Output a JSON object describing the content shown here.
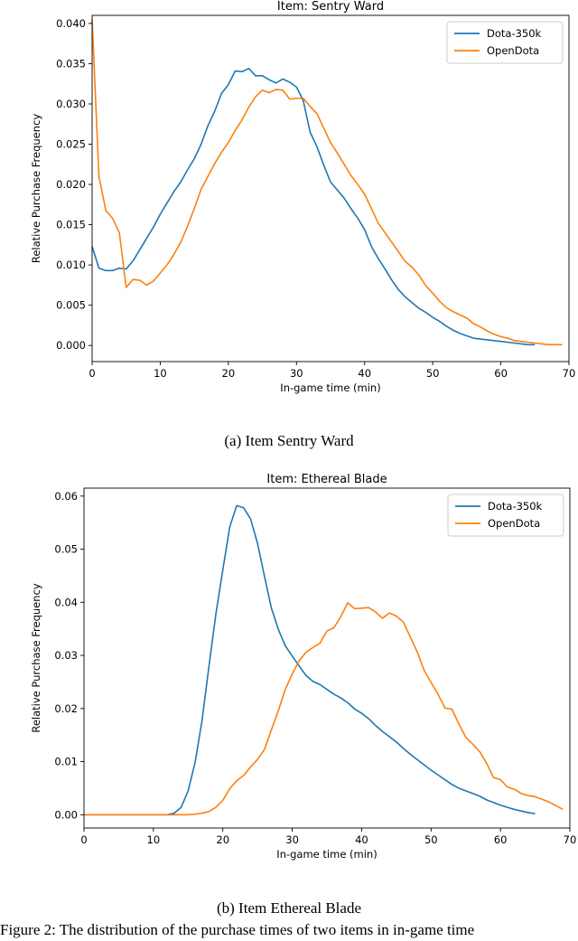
{
  "charts": [
    {
      "type": "line",
      "title": "Item: Sentry Ward",
      "xlabel": "In-game time (min)",
      "ylabel": "Relative Purchase Frequency",
      "xlim": [
        0,
        70
      ],
      "ylim": [
        -0.002,
        0.041
      ],
      "xticks": [
        0,
        10,
        20,
        30,
        40,
        50,
        60,
        70
      ],
      "yticks": [
        0.0,
        0.005,
        0.01,
        0.015,
        0.02,
        0.025,
        0.03,
        0.035,
        0.04
      ],
      "ytick_labels": [
        "0.000",
        "0.005",
        "0.010",
        "0.015",
        "0.020",
        "0.025",
        "0.030",
        "0.035",
        "0.040"
      ],
      "xtick_labels": [
        "0",
        "10",
        "20",
        "30",
        "40",
        "50",
        "60",
        "70"
      ],
      "legend": "top-right",
      "series": [
        {
          "name": "Dota-350k",
          "color": "#1f77b4",
          "x": [
            0,
            1,
            2,
            3,
            4,
            5,
            6,
            7,
            8,
            9,
            10,
            11,
            12,
            13,
            14,
            15,
            16,
            17,
            18,
            19,
            20,
            21,
            22,
            23,
            24,
            25,
            26,
            27,
            28,
            29,
            30,
            31,
            32,
            33,
            34,
            35,
            36,
            37,
            38,
            39,
            40,
            41,
            42,
            43,
            44,
            45,
            46,
            47,
            48,
            49,
            50,
            51,
            52,
            53,
            54,
            55,
            56,
            57,
            58,
            59,
            60,
            61,
            62,
            63,
            64,
            65
          ],
          "values": [
            0.0123,
            0.0096,
            0.0093,
            0.0093,
            0.0096,
            0.0095,
            0.0105,
            0.0119,
            0.0133,
            0.0147,
            0.0163,
            0.0177,
            0.0191,
            0.0203,
            0.0218,
            0.0232,
            0.025,
            0.0273,
            0.0291,
            0.0313,
            0.0324,
            0.0341,
            0.034,
            0.0344,
            0.0335,
            0.0335,
            0.033,
            0.0326,
            0.0331,
            0.0327,
            0.0321,
            0.0304,
            0.0265,
            0.0247,
            0.0224,
            0.0203,
            0.0193,
            0.0183,
            0.017,
            0.0158,
            0.0144,
            0.0123,
            0.0108,
            0.0095,
            0.0081,
            0.0069,
            0.006,
            0.0053,
            0.0046,
            0.0041,
            0.0035,
            0.003,
            0.0024,
            0.0019,
            0.0015,
            0.0012,
            0.0009,
            0.0008,
            0.0007,
            0.0006,
            0.0005,
            0.0004,
            0.0003,
            0.0002,
            0.0001,
            0.0001
          ]
        },
        {
          "name": "OpenDota",
          "color": "#ff7f0e",
          "x": [
            0,
            1,
            2,
            3,
            4,
            5,
            6,
            7,
            8,
            9,
            10,
            11,
            12,
            13,
            14,
            15,
            16,
            17,
            18,
            19,
            20,
            21,
            22,
            23,
            24,
            25,
            26,
            27,
            28,
            29,
            30,
            31,
            32,
            33,
            34,
            35,
            36,
            37,
            38,
            39,
            40,
            41,
            42,
            43,
            44,
            45,
            46,
            47,
            48,
            49,
            50,
            51,
            52,
            53,
            54,
            55,
            56,
            57,
            58,
            59,
            60,
            61,
            62,
            63,
            64,
            65,
            66,
            67,
            68,
            69
          ],
          "values": [
            0.0405,
            0.021,
            0.0168,
            0.0158,
            0.014,
            0.0072,
            0.0082,
            0.0081,
            0.0075,
            0.008,
            0.009,
            0.01,
            0.0113,
            0.0128,
            0.0148,
            0.017,
            0.0194,
            0.021,
            0.0226,
            0.024,
            0.0252,
            0.0267,
            0.028,
            0.0296,
            0.0309,
            0.0317,
            0.0314,
            0.0318,
            0.0317,
            0.0306,
            0.0307,
            0.0307,
            0.0297,
            0.0288,
            0.027,
            0.0252,
            0.0239,
            0.0225,
            0.0211,
            0.02,
            0.0188,
            0.017,
            0.0152,
            0.014,
            0.0128,
            0.0116,
            0.0104,
            0.0097,
            0.0087,
            0.0074,
            0.0065,
            0.0055,
            0.0047,
            0.0042,
            0.0038,
            0.0034,
            0.0027,
            0.0023,
            0.0018,
            0.0014,
            0.0011,
            0.0009,
            0.0006,
            0.0005,
            0.0004,
            0.0003,
            0.0002,
            0.0001,
            0.0001,
            0.0001
          ]
        }
      ]
    },
    {
      "type": "line",
      "title": "Item: Ethereal Blade",
      "xlabel": "In-game time (min)",
      "ylabel": "Relative Purchase Frequency",
      "xlim": [
        0,
        70
      ],
      "ylim": [
        -0.0025,
        0.0615
      ],
      "xticks": [
        0,
        10,
        20,
        30,
        40,
        50,
        60,
        70
      ],
      "yticks": [
        0.0,
        0.01,
        0.02,
        0.03,
        0.04,
        0.05,
        0.06
      ],
      "ytick_labels": [
        "0.00",
        "0.01",
        "0.02",
        "0.03",
        "0.04",
        "0.05",
        "0.06"
      ],
      "xtick_labels": [
        "0",
        "10",
        "20",
        "30",
        "40",
        "50",
        "60",
        "70"
      ],
      "legend": "top-right",
      "series": [
        {
          "name": "Dota-350k",
          "color": "#1f77b4",
          "x": [
            0,
            1,
            2,
            3,
            4,
            5,
            6,
            7,
            8,
            9,
            10,
            11,
            12,
            13,
            14,
            15,
            16,
            17,
            18,
            19,
            20,
            21,
            22,
            23,
            24,
            25,
            26,
            27,
            28,
            29,
            30,
            31,
            32,
            33,
            34,
            35,
            36,
            37,
            38,
            39,
            40,
            41,
            42,
            43,
            44,
            45,
            46,
            47,
            48,
            49,
            50,
            51,
            52,
            53,
            54,
            55,
            56,
            57,
            58,
            59,
            60,
            61,
            62,
            63,
            64,
            65
          ],
          "values": [
            0,
            0,
            0,
            0,
            0,
            0,
            0,
            0,
            0,
            0,
            0,
            0,
            0,
            0.0003,
            0.0014,
            0.0045,
            0.0098,
            0.0177,
            0.0279,
            0.0378,
            0.0461,
            0.0542,
            0.0582,
            0.0578,
            0.0557,
            0.0511,
            0.0449,
            0.0389,
            0.0349,
            0.0318,
            0.0299,
            0.028,
            0.0262,
            0.0251,
            0.0245,
            0.0236,
            0.0227,
            0.022,
            0.0211,
            0.0199,
            0.0191,
            0.0181,
            0.0168,
            0.0157,
            0.0147,
            0.0137,
            0.0125,
            0.0114,
            0.0104,
            0.0094,
            0.0084,
            0.0075,
            0.0066,
            0.0057,
            0.005,
            0.0045,
            0.004,
            0.0035,
            0.0028,
            0.0023,
            0.0018,
            0.0014,
            0.001,
            0.0007,
            0.0004,
            0.0002
          ]
        },
        {
          "name": "OpenDota",
          "color": "#ff7f0e",
          "x": [
            0,
            1,
            2,
            3,
            4,
            5,
            6,
            7,
            8,
            9,
            10,
            11,
            12,
            13,
            14,
            15,
            16,
            17,
            18,
            19,
            20,
            21,
            22,
            23,
            24,
            25,
            26,
            27,
            28,
            29,
            30,
            31,
            32,
            33,
            34,
            35,
            36,
            37,
            38,
            39,
            40,
            41,
            42,
            43,
            44,
            45,
            46,
            47,
            48,
            49,
            50,
            51,
            52,
            53,
            54,
            55,
            56,
            57,
            58,
            59,
            60,
            61,
            62,
            63,
            64,
            65,
            66,
            67,
            68,
            69
          ],
          "values": [
            0,
            0,
            0,
            0,
            0,
            0,
            0,
            0,
            0,
            0,
            0,
            0,
            0,
            0,
            0,
            0,
            0.0001,
            0.0003,
            0.0006,
            0.0014,
            0.0027,
            0.0049,
            0.0064,
            0.0074,
            0.009,
            0.0104,
            0.0123,
            0.016,
            0.0196,
            0.0236,
            0.0265,
            0.029,
            0.0306,
            0.0315,
            0.0323,
            0.0346,
            0.0352,
            0.0373,
            0.0399,
            0.0388,
            0.0389,
            0.039,
            0.0382,
            0.037,
            0.038,
            0.0374,
            0.0363,
            0.0335,
            0.0307,
            0.0272,
            0.0249,
            0.0227,
            0.0201,
            0.0199,
            0.0171,
            0.0146,
            0.0133,
            0.0119,
            0.0097,
            0.007,
            0.0066,
            0.0052,
            0.0048,
            0.004,
            0.0036,
            0.0034,
            0.0029,
            0.0024,
            0.0017,
            0.001
          ]
        }
      ]
    }
  ],
  "captions": [
    "(a) Item Sentry Ward",
    "(b) Item Ethereal Blade"
  ],
  "footer_text": "Figure 2: The distribution of the purchase times of two items in in-game time"
}
